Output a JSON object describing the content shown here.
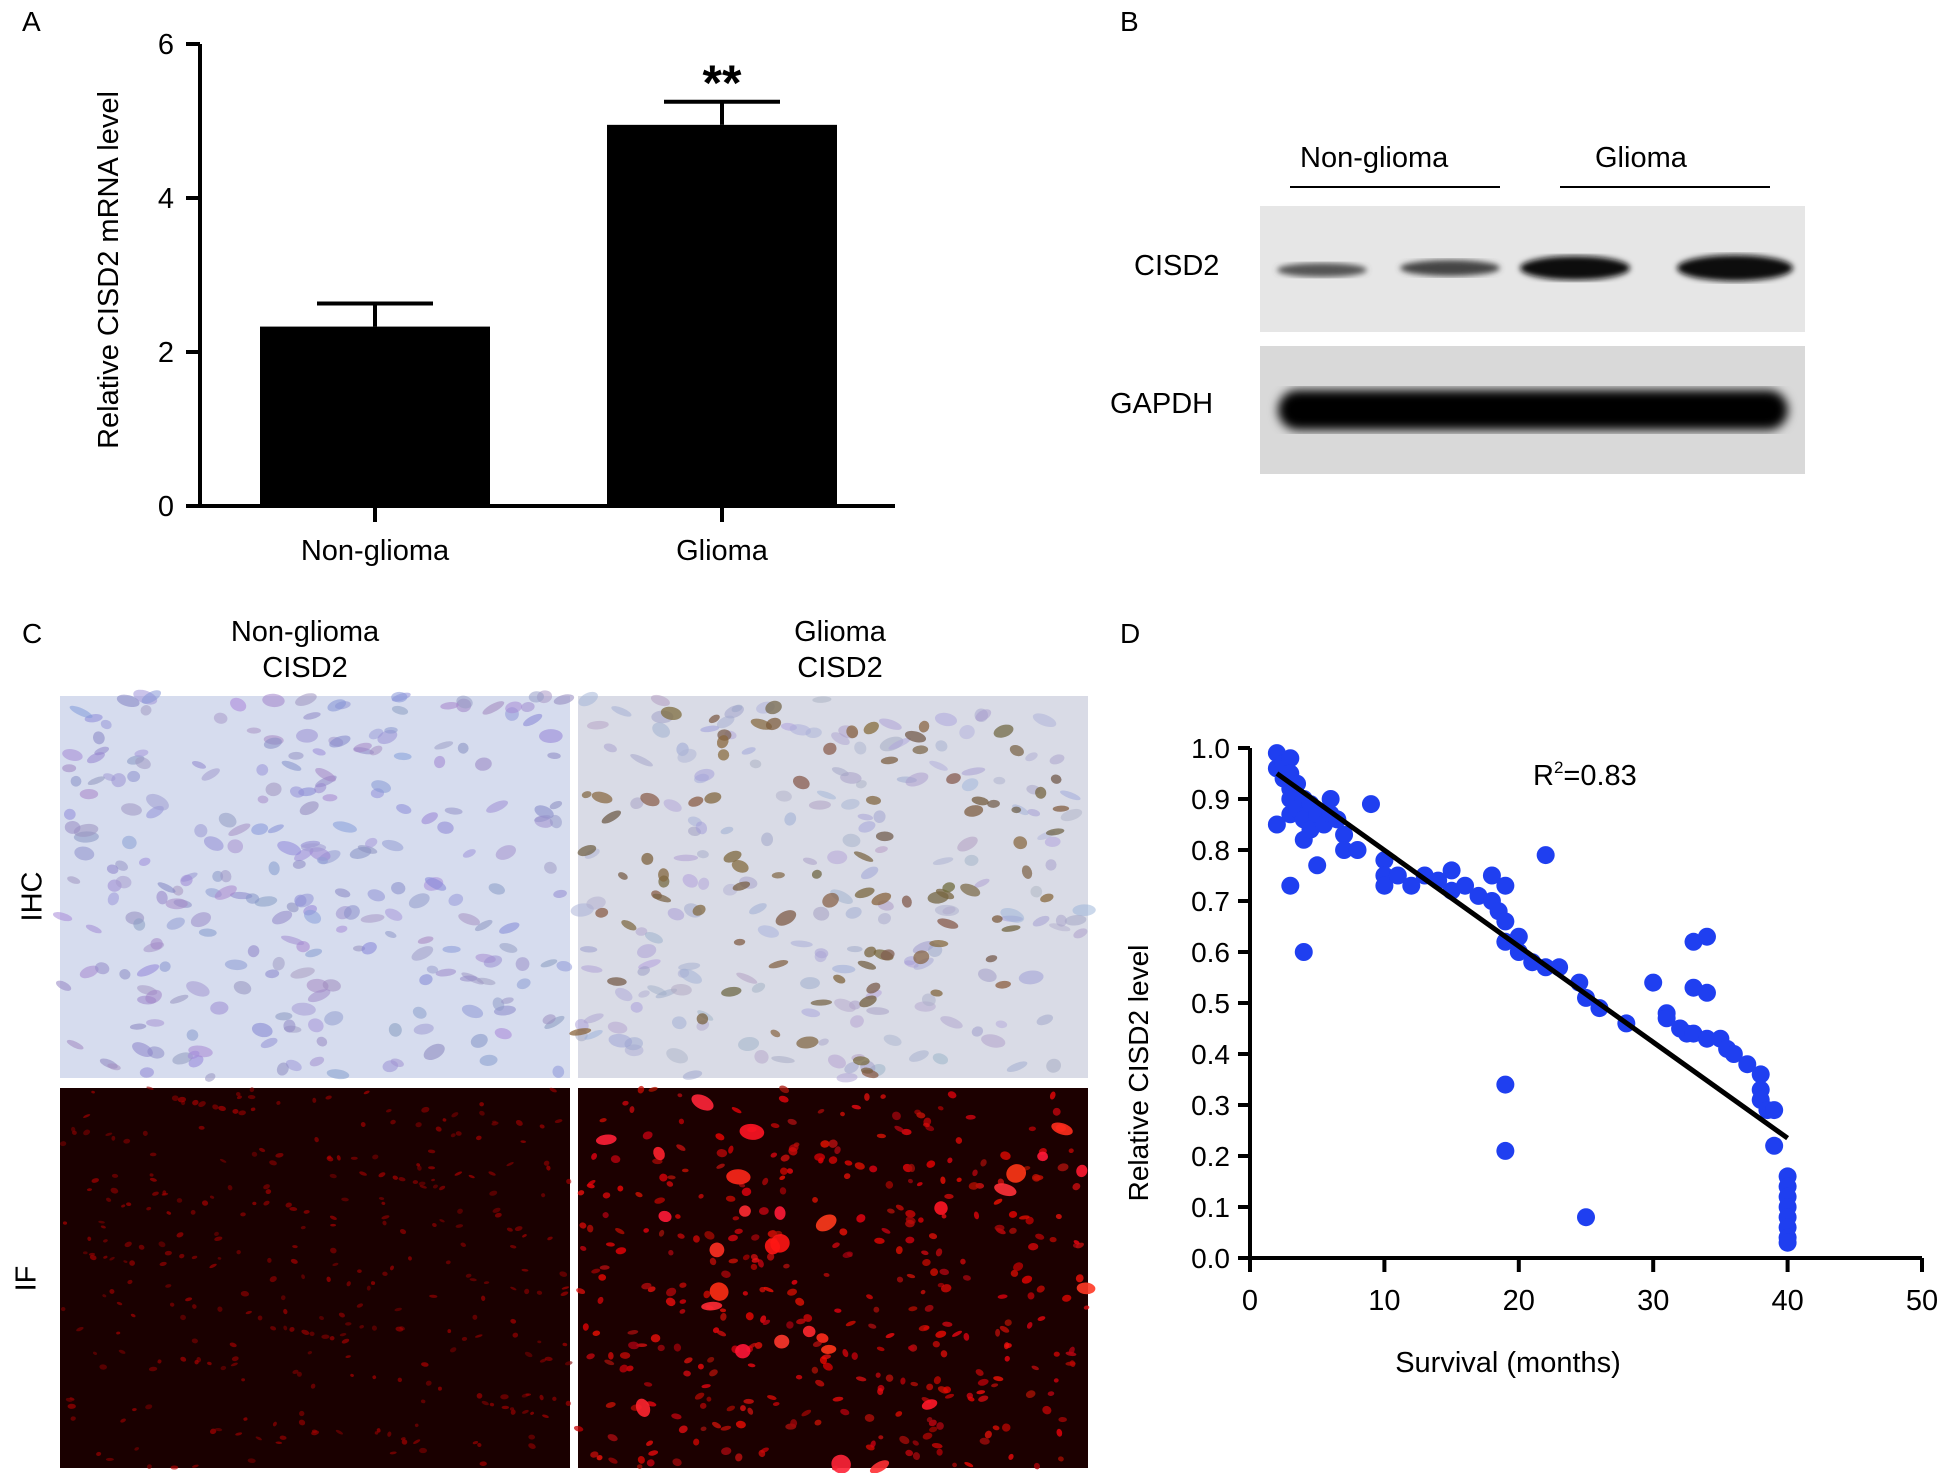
{
  "panels": {
    "a": "A",
    "b": "B",
    "c": "C",
    "d": "D"
  },
  "chart_data": [
    {
      "type": "bar",
      "panel": "A",
      "categories": [
        "Non-glioma",
        "Glioma"
      ],
      "values": [
        2.33,
        4.95
      ],
      "errors": [
        0.3,
        0.3
      ],
      "ylabel": "Relative CISD2 mRNA level",
      "ylim": [
        0,
        6
      ],
      "yticks": [
        "0",
        "2",
        "4",
        "6"
      ],
      "annotation": "**",
      "color": "#000000"
    },
    {
      "type": "scatter",
      "panel": "D",
      "xlabel": "Survival (months)",
      "ylabel": "Relative CISD2 level",
      "xlim": [
        0,
        50
      ],
      "ylim": [
        0,
        1.0
      ],
      "xticks": [
        "0",
        "10",
        "20",
        "30",
        "40",
        "50"
      ],
      "yticks": [
        "0.0",
        "0.1",
        "0.2",
        "0.3",
        "0.4",
        "0.5",
        "0.6",
        "0.7",
        "0.8",
        "0.9",
        "1.0"
      ],
      "annotation_r": "R",
      "annotation_sup": "2",
      "annotation_val": "=0.83",
      "point_color": "#1f3ff0",
      "trend_line": {
        "x": [
          2,
          40
        ],
        "y": [
          0.95,
          0.235
        ]
      },
      "points": [
        [
          2,
          0.99
        ],
        [
          2,
          0.96
        ],
        [
          2,
          0.85
        ],
        [
          2.5,
          0.94
        ],
        [
          2.5,
          0.97
        ],
        [
          3,
          0.98
        ],
        [
          3,
          0.95
        ],
        [
          3,
          0.92
        ],
        [
          3,
          0.9
        ],
        [
          3,
          0.87
        ],
        [
          3,
          0.73
        ],
        [
          3.5,
          0.93
        ],
        [
          3.5,
          0.88
        ],
        [
          4,
          0.9
        ],
        [
          4,
          0.86
        ],
        [
          4,
          0.82
        ],
        [
          4,
          0.6
        ],
        [
          4.5,
          0.89
        ],
        [
          4.5,
          0.84
        ],
        [
          5,
          0.87
        ],
        [
          5,
          0.77
        ],
        [
          5.5,
          0.85
        ],
        [
          6,
          0.9
        ],
        [
          6,
          0.87
        ],
        [
          6.5,
          0.86
        ],
        [
          7,
          0.83
        ],
        [
          7,
          0.8
        ],
        [
          8,
          0.8
        ],
        [
          9,
          0.89
        ],
        [
          10,
          0.78
        ],
        [
          10,
          0.75
        ],
        [
          10,
          0.73
        ],
        [
          11,
          0.75
        ],
        [
          12,
          0.73
        ],
        [
          13,
          0.75
        ],
        [
          14,
          0.74
        ],
        [
          15,
          0.76
        ],
        [
          15,
          0.72
        ],
        [
          16,
          0.73
        ],
        [
          17,
          0.71
        ],
        [
          18,
          0.7
        ],
        [
          18,
          0.75
        ],
        [
          18.5,
          0.68
        ],
        [
          19,
          0.73
        ],
        [
          19,
          0.66
        ],
        [
          19,
          0.62
        ],
        [
          19,
          0.34
        ],
        [
          19,
          0.21
        ],
        [
          20,
          0.63
        ],
        [
          20,
          0.6
        ],
        [
          21,
          0.58
        ],
        [
          22,
          0.79
        ],
        [
          22,
          0.57
        ],
        [
          23,
          0.57
        ],
        [
          24.5,
          0.54
        ],
        [
          25,
          0.51
        ],
        [
          25,
          0.08
        ],
        [
          26,
          0.49
        ],
        [
          28,
          0.46
        ],
        [
          30,
          0.54
        ],
        [
          31,
          0.48
        ],
        [
          31,
          0.47
        ],
        [
          32,
          0.45
        ],
        [
          32.5,
          0.44
        ],
        [
          33,
          0.62
        ],
        [
          33,
          0.53
        ],
        [
          33,
          0.44
        ],
        [
          34,
          0.63
        ],
        [
          34,
          0.52
        ],
        [
          34,
          0.43
        ],
        [
          35,
          0.43
        ],
        [
          35.5,
          0.41
        ],
        [
          36,
          0.4
        ],
        [
          37,
          0.38
        ],
        [
          38,
          0.36
        ],
        [
          38,
          0.33
        ],
        [
          38,
          0.31
        ],
        [
          38.5,
          0.29
        ],
        [
          39,
          0.29
        ],
        [
          39,
          0.22
        ],
        [
          40,
          0.16
        ],
        [
          40,
          0.14
        ],
        [
          40,
          0.12
        ],
        [
          40,
          0.1
        ],
        [
          40,
          0.08
        ],
        [
          40,
          0.06
        ],
        [
          40,
          0.04
        ],
        [
          40,
          0.03
        ]
      ]
    }
  ],
  "western_blot": {
    "groups": [
      "Non-glioma",
      "Glioma"
    ],
    "rows": [
      "CISD2",
      "GAPDH"
    ]
  },
  "micrographs": {
    "col1_line1": "Non-glioma",
    "col1_line2": "CISD2",
    "col2_line1": "Glioma",
    "col2_line2": "CISD2",
    "row1": "IHC",
    "row2": "IF"
  }
}
